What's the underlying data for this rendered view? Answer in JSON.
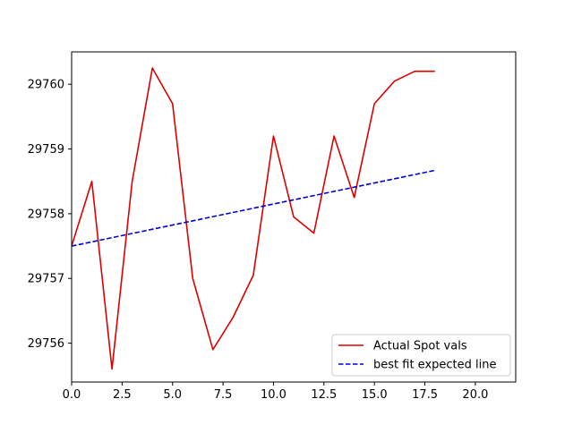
{
  "chart_data": {
    "type": "line",
    "title": "",
    "xlabel": "",
    "ylabel": "",
    "xlim": [
      0,
      22
    ],
    "ylim": [
      29755.4,
      29760.5
    ],
    "x_ticks": [
      0.0,
      2.5,
      5.0,
      7.5,
      10.0,
      12.5,
      15.0,
      17.5,
      20.0
    ],
    "x_tick_labels": [
      "0.0",
      "2.5",
      "5.0",
      "7.5",
      "10.0",
      "12.5",
      "15.0",
      "17.5",
      "20.0"
    ],
    "y_ticks": [
      29756,
      29757,
      29758,
      29759,
      29760
    ],
    "y_tick_labels": [
      "29756",
      "29757",
      "29758",
      "29759",
      "29760"
    ],
    "grid": false,
    "legend_position": "bottom-right",
    "series": [
      {
        "name": "Actual Spot vals",
        "color": "#dd0000",
        "style": "solid",
        "x": [
          0,
          1,
          2,
          3,
          4,
          5,
          6,
          7,
          8,
          9,
          10,
          11,
          12,
          13,
          14,
          15,
          16,
          17,
          18
        ],
        "values": [
          29757.5,
          29758.5,
          29755.6,
          29758.5,
          29760.25,
          29759.7,
          29757.0,
          29755.9,
          29756.4,
          29757.05,
          29759.2,
          29757.95,
          29757.7,
          29759.2,
          29758.25,
          29759.7,
          29760.05,
          29760.2,
          29760.2
        ]
      },
      {
        "name": "best fit expected line",
        "color": "#0000cc",
        "style": "dashed",
        "x": [
          0,
          18
        ],
        "values": [
          29757.5,
          29758.67
        ]
      }
    ]
  }
}
